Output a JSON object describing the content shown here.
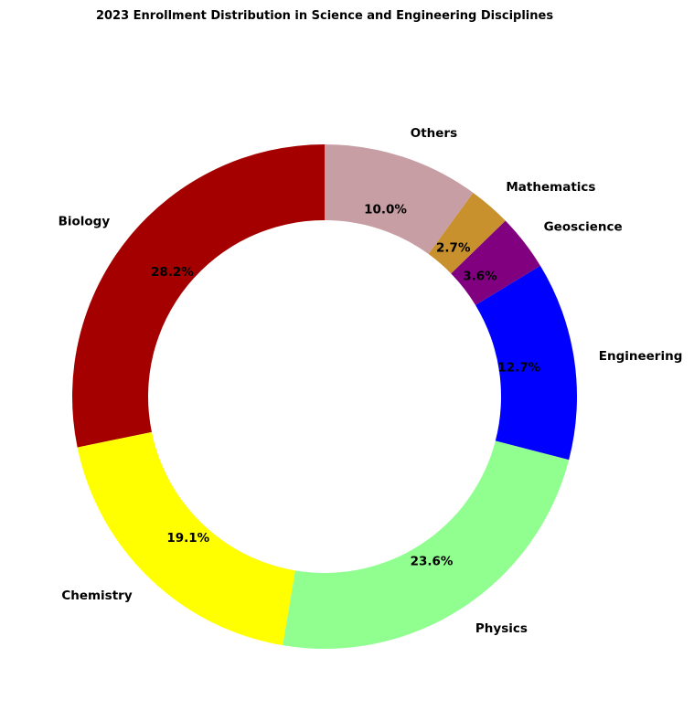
{
  "chart_data": {
    "type": "pie",
    "donut": true,
    "title": "2023 Enrollment Distribution in Science and Engineering Disciplines",
    "start_angle_deg": 90,
    "direction": "counterclockwise",
    "slices": [
      {
        "label": "Biology",
        "value": 28.2,
        "pct_label": "28.2%",
        "color": "#a50000"
      },
      {
        "label": "Chemistry",
        "value": 19.1,
        "pct_label": "19.1%",
        "color": "#ffff00"
      },
      {
        "label": "Physics",
        "value": 23.6,
        "pct_label": "23.6%",
        "color": "#90ff90"
      },
      {
        "label": "Engineering",
        "value": 12.7,
        "pct_label": "12.7%",
        "color": "#0000ff"
      },
      {
        "label": "Geoscience",
        "value": 3.6,
        "pct_label": "3.6%",
        "color": "#800080"
      },
      {
        "label": "Mathematics",
        "value": 2.7,
        "pct_label": "2.7%",
        "color": "#c8912e"
      },
      {
        "label": "Others",
        "value": 10.0,
        "pct_label": "10.0%",
        "color": "#c89ea5"
      }
    ]
  }
}
